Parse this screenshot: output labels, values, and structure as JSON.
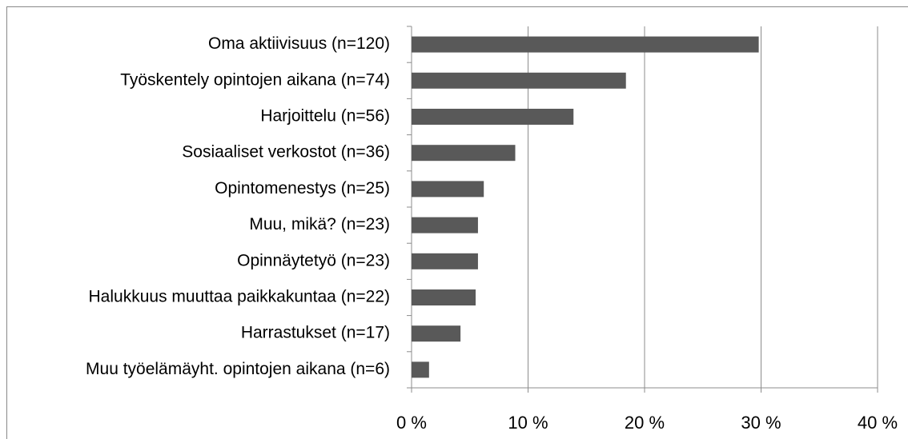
{
  "chart_data": {
    "type": "bar",
    "orientation": "horizontal",
    "categories": [
      "Oma aktiivisuus (n=120)",
      "Työskentely opintojen aikana (n=74)",
      "Harjoittelu (n=56)",
      "Sosiaaliset verkostot (n=36)",
      "Opintomenestys (n=25)",
      "Muu, mikä? (n=23)",
      "Opinnäytetyö (n=23)",
      "Halukkuus muuttaa paikkakuntaa (n=22)",
      "Harrastukset (n=17)",
      "Muu työelämäyht. opintojen aikana (n=6)"
    ],
    "values": [
      29.8,
      18.4,
      13.9,
      8.9,
      6.2,
      5.7,
      5.7,
      5.5,
      4.2,
      1.5
    ],
    "color": "#595959",
    "xlim": [
      0,
      40
    ],
    "xticks": [
      {
        "value": 0,
        "label": "0 %"
      },
      {
        "value": 10,
        "label": "10 %"
      },
      {
        "value": 20,
        "label": "20 %"
      },
      {
        "value": 30,
        "label": "30 %"
      },
      {
        "value": 40,
        "label": "40 %"
      }
    ],
    "grid": true
  }
}
